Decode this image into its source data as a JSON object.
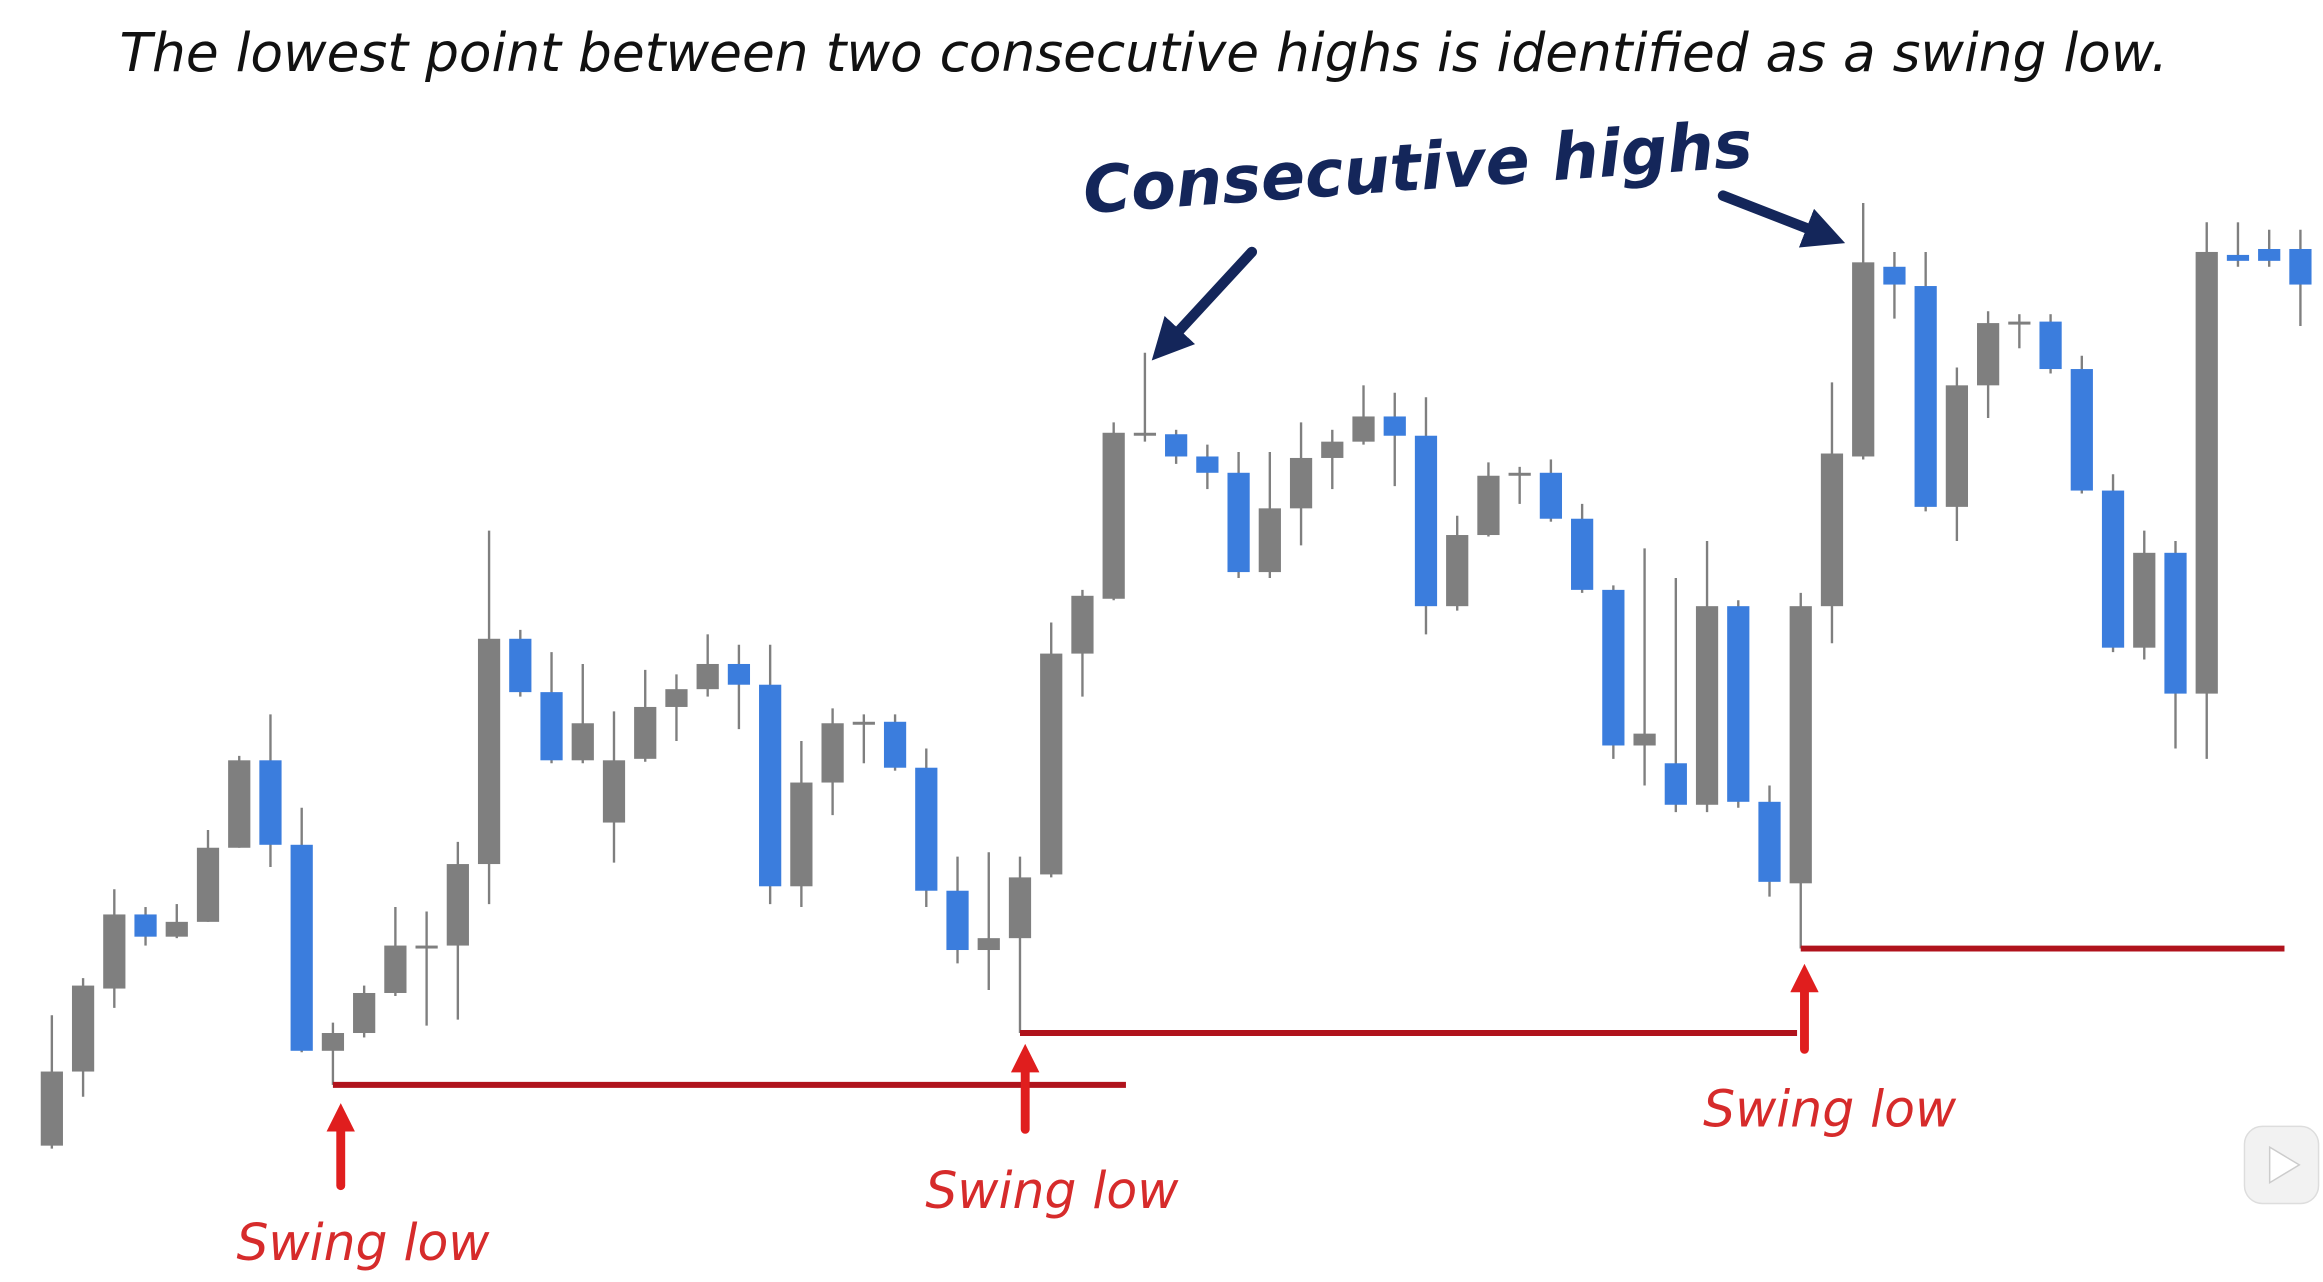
{
  "chart_data": {
    "type": "candlestick",
    "title": "The lowest point between two consecutive highs is identified as a swing low.",
    "annotations": {
      "highs": "Consecutive highs",
      "swing_lows": [
        "Swing low",
        "Swing low",
        "Swing low"
      ]
    },
    "colors": {
      "up": "#7f7f7f",
      "down": "#3b7ddd",
      "wick": "#7f7f7f",
      "level": "#b0131c"
    },
    "ylim": [
      0,
      865
    ],
    "open": [
      92,
      142,
      198,
      248,
      233,
      243,
      293,
      352,
      295,
      156,
      168,
      195,
      225,
      227,
      282,
      434,
      398,
      352,
      310,
      353,
      388,
      400,
      417,
      403,
      267,
      337,
      376,
      378,
      347,
      264,
      224,
      232,
      275,
      424,
      461,
      572,
      572,
      557,
      546,
      479,
      522,
      556,
      567,
      584,
      571,
      456,
      504,
      544,
      546,
      515,
      467,
      362,
      350,
      322,
      456,
      324,
      269,
      456,
      557,
      685,
      672,
      523,
      605,
      646,
      648,
      616,
      534,
      428,
      492,
      397,
      693,
      697,
      697
    ],
    "high": [
      180,
      205,
      265,
      253,
      255,
      305,
      355,
      383,
      320,
      175,
      200,
      253,
      250,
      297,
      507,
      440,
      425,
      417,
      385,
      413,
      410,
      437,
      430,
      430,
      365,
      387,
      383,
      383,
      360,
      287,
      290,
      287,
      445,
      467,
      580,
      627,
      575,
      565,
      560,
      560,
      580,
      575,
      605,
      600,
      597,
      517,
      553,
      550,
      555,
      525,
      470,
      495,
      475,
      500,
      460,
      335,
      465,
      607,
      728,
      695,
      695,
      617,
      655,
      653,
      653,
      625,
      545,
      507,
      500,
      715,
      715,
      710,
      710
    ],
    "low": [
      90,
      125,
      185,
      227,
      232,
      243,
      293,
      280,
      155,
      133,
      165,
      193,
      173,
      177,
      255,
      395,
      350,
      350,
      283,
      351,
      365,
      395,
      373,
      255,
      253,
      315,
      350,
      345,
      253,
      215,
      197,
      168,
      273,
      395,
      460,
      567,
      552,
      535,
      475,
      475,
      497,
      535,
      565,
      537,
      437,
      453,
      503,
      525,
      513,
      465,
      353,
      335,
      317,
      317,
      320,
      260,
      225,
      431,
      555,
      650,
      520,
      500,
      583,
      630,
      613,
      532,
      425,
      420,
      360,
      353,
      685,
      685,
      645
    ],
    "close": [
      142,
      200,
      248,
      233,
      243,
      293,
      352,
      295,
      156,
      168,
      195,
      227,
      227,
      282,
      434,
      398,
      352,
      377,
      352,
      388,
      400,
      417,
      403,
      267,
      337,
      377,
      378,
      347,
      264,
      224,
      232,
      273,
      424,
      463,
      573,
      573,
      557,
      546,
      479,
      522,
      556,
      567,
      584,
      571,
      456,
      504,
      544,
      546,
      515,
      467,
      362,
      370,
      322,
      456,
      324,
      270,
      456,
      559,
      688,
      673,
      523,
      605,
      647,
      648,
      616,
      534,
      428,
      492,
      397,
      695,
      689,
      689,
      673
    ]
  }
}
